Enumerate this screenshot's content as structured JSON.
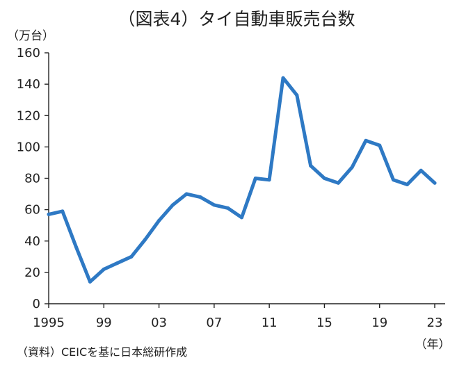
{
  "chart_data": {
    "type": "line",
    "title": "（図表4）タイ自動車販売台数",
    "ylabel": "（万台）",
    "xlabel": "（年）",
    "ylim": [
      0,
      160
    ],
    "yticks": [
      0,
      20,
      40,
      60,
      80,
      100,
      120,
      140,
      160
    ],
    "xlim": [
      1995,
      2023
    ],
    "xticks": [
      {
        "year": 1995,
        "label": "1995"
      },
      {
        "year": 1999,
        "label": "99"
      },
      {
        "year": 2003,
        "label": "03"
      },
      {
        "year": 2007,
        "label": "07"
      },
      {
        "year": 2011,
        "label": "11"
      },
      {
        "year": 2015,
        "label": "15"
      },
      {
        "year": 2019,
        "label": "19"
      },
      {
        "year": 2023,
        "label": "23"
      }
    ],
    "grid": false,
    "x": [
      1995,
      1996,
      1997,
      1998,
      1999,
      2000,
      2001,
      2002,
      2003,
      2004,
      2005,
      2006,
      2007,
      2008,
      2009,
      2010,
      2011,
      2012,
      2013,
      2014,
      2015,
      2016,
      2017,
      2018,
      2019,
      2020,
      2021,
      2022,
      2023
    ],
    "series": [
      {
        "values": [
          57,
          59,
          36,
          14,
          22,
          26,
          30,
          41,
          53,
          63,
          70,
          68,
          63,
          61,
          55,
          80,
          79,
          144,
          133,
          88,
          80,
          77,
          87,
          104,
          101,
          79,
          76,
          85,
          77
        ],
        "color": "#2e79c4"
      }
    ],
    "source": "（資料）CEICを基に日本総研作成"
  }
}
